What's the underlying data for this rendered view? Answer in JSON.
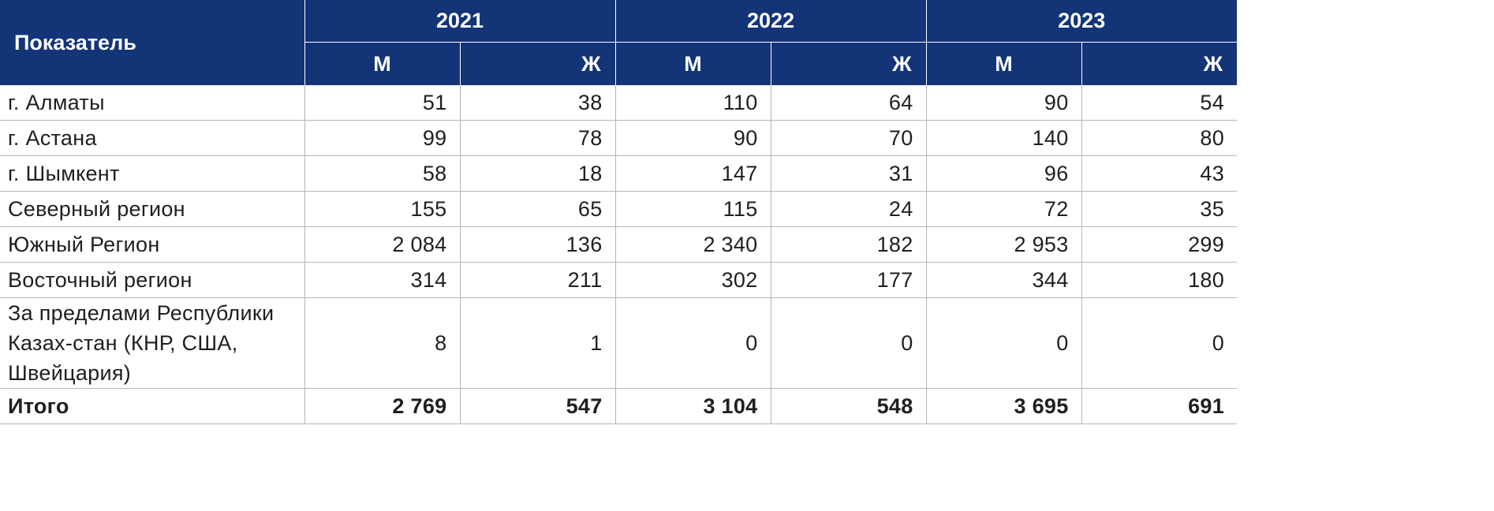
{
  "header": {
    "indicator_label": "Показатель",
    "years": [
      "2021",
      "2022",
      "2023"
    ],
    "sex_labels": [
      "М",
      "Ж",
      "М",
      "Ж",
      "М",
      "Ж"
    ]
  },
  "rows": [
    {
      "label": "г. Алматы",
      "values": [
        "51",
        "38",
        "110",
        "64",
        "90",
        "54"
      ]
    },
    {
      "label": "г. Астана",
      "values": [
        "99",
        "78",
        "90",
        "70",
        "140",
        "80"
      ]
    },
    {
      "label": "г. Шымкент",
      "values": [
        "58",
        "18",
        "147",
        "31",
        "96",
        "43"
      ]
    },
    {
      "label": "Северный регион",
      "values": [
        "155",
        "65",
        "115",
        "24",
        "72",
        "35"
      ]
    },
    {
      "label": "Южный Регион",
      "values": [
        "2 084",
        "136",
        "2 340",
        "182",
        "2 953",
        "299"
      ]
    },
    {
      "label": "Восточный регион",
      "values": [
        "314",
        "211",
        "302",
        "177",
        "344",
        "180"
      ]
    },
    {
      "label": "За пределами Республики Казах-стан (КНР, США, Швейцария)",
      "values": [
        "8",
        "1",
        "0",
        "0",
        "0",
        "0"
      ]
    }
  ],
  "total": {
    "label": "Итого",
    "values": [
      "2 769",
      "547",
      "3 104",
      "548",
      "3 695",
      "691"
    ]
  },
  "colors": {
    "header_bg": "#143478",
    "header_text": "#ffffff",
    "grid": "#b5b5b5"
  }
}
